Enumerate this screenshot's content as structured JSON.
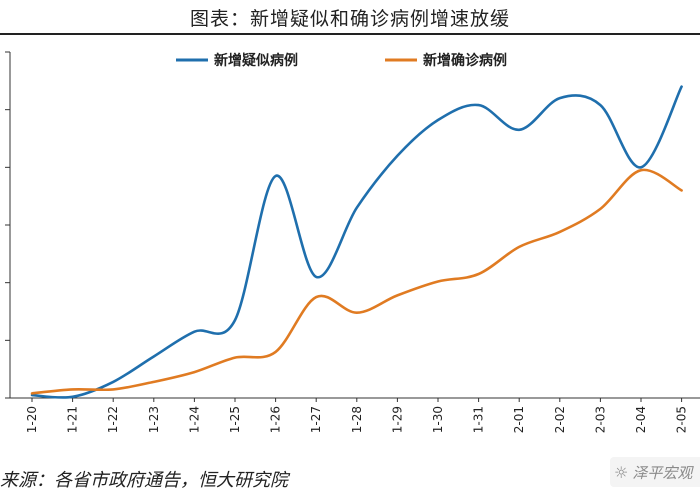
{
  "page": {
    "title": "图表：新增疑似和确诊病例增速放缓",
    "source": "来源：各省市政府通告，恒大研究院",
    "watermark": "泽平宏观",
    "watermark_icon": "wechat-icon"
  },
  "chart_data": {
    "type": "line",
    "title": "",
    "xlabel": "",
    "ylabel": "",
    "categories": [
      "1-20",
      "1-21",
      "1-22",
      "1-23",
      "1-24",
      "1-25",
      "1-26",
      "1-27",
      "1-28",
      "1-29",
      "1-30",
      "1-31",
      "2-01",
      "2-02",
      "2-03",
      "2-04",
      "2-05"
    ],
    "ylim": [
      0,
      6
    ],
    "yticks": [
      0,
      1,
      2,
      3,
      4,
      5,
      6
    ],
    "y_tick_labels_visible": false,
    "grid": false,
    "legend": "top",
    "series": [
      {
        "name": "新增疑似病例",
        "color": "#1f6fad",
        "values": [
          0.05,
          0.02,
          0.28,
          0.72,
          1.15,
          1.35,
          3.85,
          2.1,
          3.3,
          4.2,
          4.82,
          5.08,
          4.65,
          5.2,
          5.08,
          4.0,
          5.4
        ]
      },
      {
        "name": "新增确诊病例",
        "color": "#e07b22",
        "values": [
          0.08,
          0.15,
          0.15,
          0.28,
          0.45,
          0.7,
          0.8,
          1.75,
          1.48,
          1.78,
          2.02,
          2.15,
          2.62,
          2.88,
          3.28,
          3.95,
          3.6
        ]
      }
    ]
  }
}
